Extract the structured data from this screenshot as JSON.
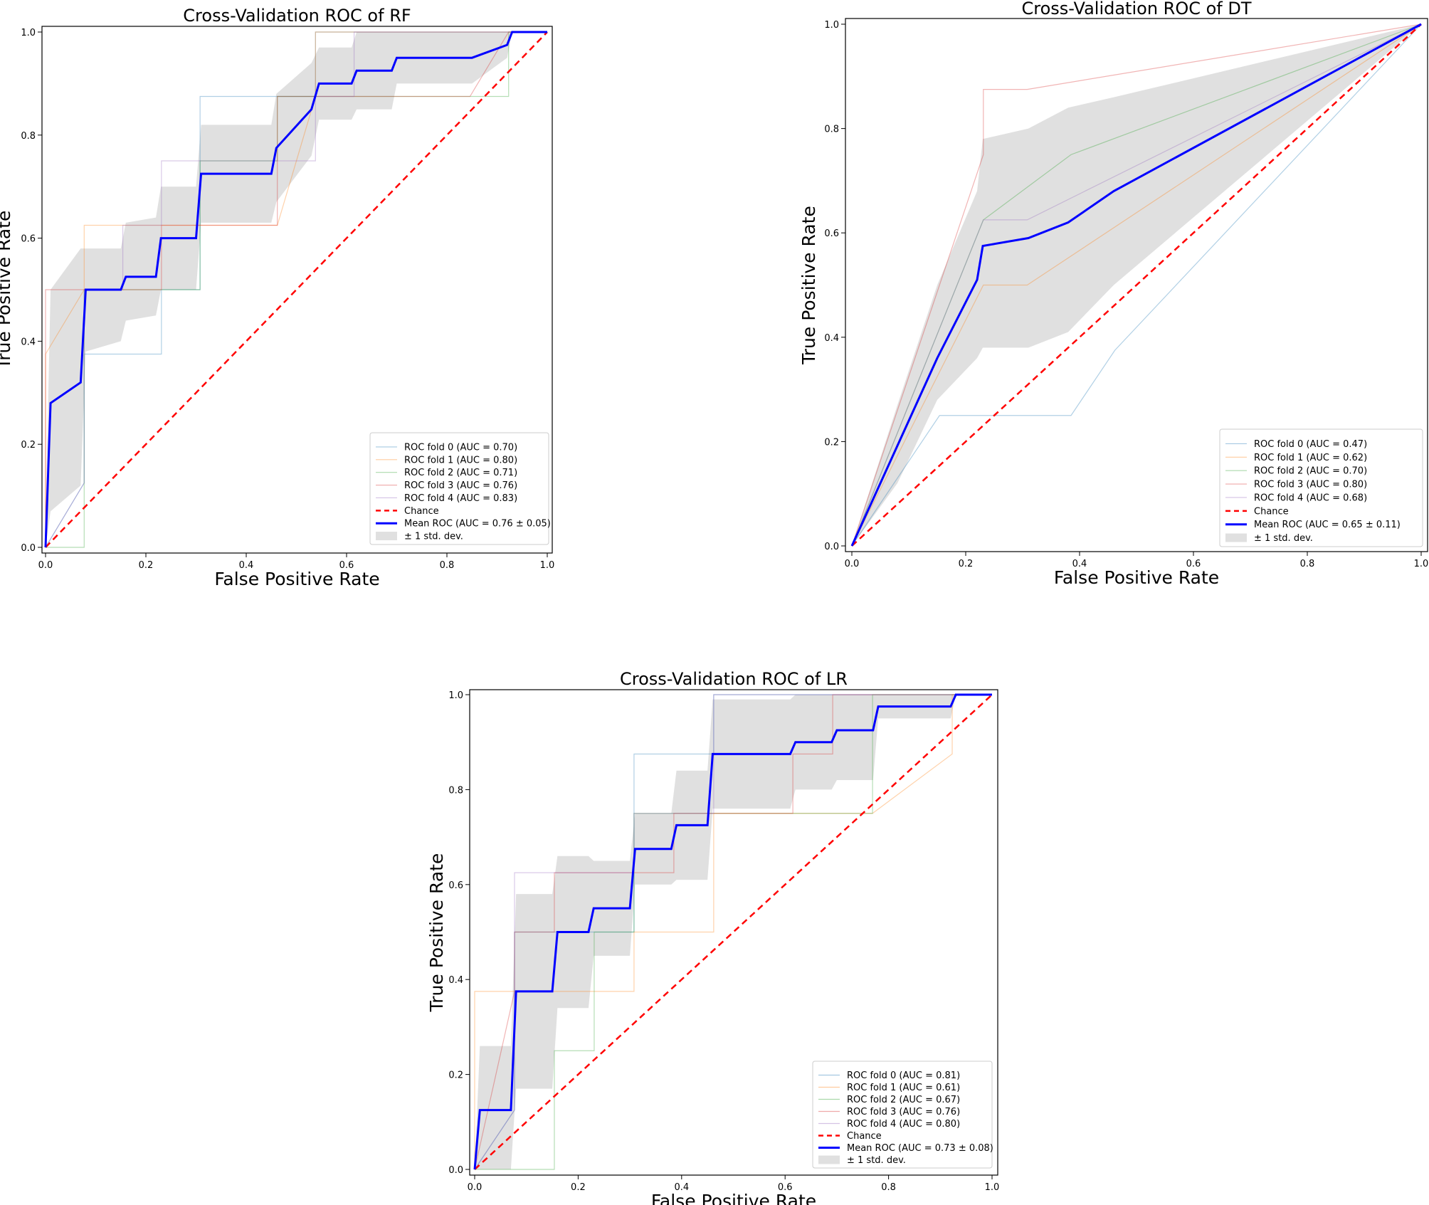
{
  "chart_data": [
    {
      "type": "line",
      "title": "Cross-Validation ROC of RF",
      "xlabel": "False Positive Rate",
      "ylabel": "True Positive Rate",
      "xlim": [
        0,
        1
      ],
      "ylim": [
        0,
        1
      ],
      "xticks": [
        "0.0",
        "0.2",
        "0.4",
        "0.6",
        "0.8",
        "1.0"
      ],
      "yticks": [
        "0.0",
        "0.2",
        "0.4",
        "0.6",
        "0.8",
        "1.0"
      ],
      "legend_position": "lower-right",
      "series": [
        {
          "name": "ROC fold 0 (AUC = 0.70)",
          "color": "#1f77b4",
          "x": [
            0,
            0.077,
            0.077,
            0.231,
            0.231,
            0.308,
            0.308,
            0.538,
            0.538,
            0.615,
            0.615,
            1
          ],
          "y": [
            0,
            0.125,
            0.375,
            0.375,
            0.5,
            0.5,
            0.875,
            0.875,
            1,
            1,
            1,
            1
          ]
        },
        {
          "name": "ROC fold 1 (AUC = 0.80)",
          "color": "#ff7f0e",
          "x": [
            0,
            0,
            0.077,
            0.077,
            0.462,
            0.538,
            0.538,
            1
          ],
          "y": [
            0,
            0.375,
            0.5,
            0.625,
            0.625,
            0.875,
            1,
            1
          ]
        },
        {
          "name": "ROC fold 2 (AUC = 0.71)",
          "color": "#2ca02c",
          "x": [
            0,
            0.077,
            0.077,
            0.308,
            0.308,
            0.462,
            0.462,
            0.923,
            0.923,
            1
          ],
          "y": [
            0,
            0,
            0.5,
            0.5,
            0.75,
            0.75,
            0.875,
            0.875,
            1,
            1
          ]
        },
        {
          "name": "ROC fold 3 (AUC = 0.76)",
          "color": "#d62728",
          "x": [
            0,
            0,
            0.231,
            0.231,
            0.462,
            0.462,
            0.846,
            0.923,
            1
          ],
          "y": [
            0,
            0.5,
            0.5,
            0.625,
            0.625,
            0.875,
            0.875,
            1,
            1
          ]
        },
        {
          "name": "ROC fold 4 (AUC = 0.83)",
          "color": "#9467bd",
          "x": [
            0,
            0.077,
            0.077,
            0.154,
            0.154,
            0.231,
            0.231,
            0.538,
            0.538,
            0.615,
            0.615,
            1
          ],
          "y": [
            0,
            0.125,
            0.5,
            0.5,
            0.625,
            0.625,
            0.75,
            0.75,
            0.875,
            0.875,
            1,
            1
          ]
        },
        {
          "name": "Chance",
          "color": "#ff0000",
          "dashed": true,
          "x": [
            0,
            1
          ],
          "y": [
            0,
            1
          ]
        },
        {
          "name": "Mean ROC (AUC = 0.76 ± 0.05)",
          "color": "#0000ff",
          "mean": true,
          "x": [
            0,
            0.01,
            0.07,
            0.08,
            0.15,
            0.16,
            0.22,
            0.23,
            0.3,
            0.31,
            0.45,
            0.46,
            0.53,
            0.545,
            0.55,
            0.61,
            0.62,
            0.69,
            0.7,
            0.85,
            0.92,
            0.93,
            1
          ],
          "y": [
            0,
            0.28,
            0.32,
            0.5,
            0.5,
            0.525,
            0.525,
            0.6,
            0.6,
            0.725,
            0.725,
            0.775,
            0.85,
            0.9,
            0.9,
            0.9,
            0.925,
            0.925,
            0.95,
            0.95,
            0.975,
            1,
            1
          ]
        }
      ],
      "band": {
        "name": "± 1 std. dev.",
        "x": [
          0,
          0.01,
          0.07,
          0.08,
          0.15,
          0.16,
          0.22,
          0.23,
          0.3,
          0.31,
          0.45,
          0.46,
          0.53,
          0.545,
          0.55,
          0.61,
          0.62,
          0.69,
          0.7,
          0.85,
          0.92,
          0.93,
          1
        ],
        "upper": [
          0.05,
          0.5,
          0.58,
          0.58,
          0.58,
          0.63,
          0.64,
          0.7,
          0.7,
          0.82,
          0.82,
          0.88,
          0.94,
          0.97,
          0.97,
          0.97,
          1,
          1,
          1,
          1,
          1,
          1,
          1
        ],
        "lower": [
          0,
          0.07,
          0.12,
          0.38,
          0.4,
          0.44,
          0.45,
          0.5,
          0.5,
          0.63,
          0.63,
          0.67,
          0.76,
          0.83,
          0.83,
          0.83,
          0.85,
          0.85,
          0.9,
          0.9,
          0.95,
          1,
          1
        ]
      }
    },
    {
      "type": "line",
      "title": "Cross-Validation ROC of DT",
      "xlabel": "False Positive Rate",
      "ylabel": "True Positive Rate",
      "xlim": [
        0,
        1
      ],
      "ylim": [
        0,
        1
      ],
      "xticks": [
        "0.0",
        "0.2",
        "0.4",
        "0.6",
        "0.8",
        "1.0"
      ],
      "yticks": [
        "0.0",
        "0.2",
        "0.4",
        "0.6",
        "0.8",
        "1.0"
      ],
      "legend_position": "lower-right",
      "series": [
        {
          "name": "ROC fold 0 (AUC = 0.47)",
          "color": "#1f77b4",
          "x": [
            0,
            0.154,
            0.385,
            0.462,
            1
          ],
          "y": [
            0,
            0.25,
            0.25,
            0.375,
            1
          ]
        },
        {
          "name": "ROC fold 1 (AUC = 0.62)",
          "color": "#ff7f0e",
          "x": [
            0,
            0.231,
            0.308,
            1
          ],
          "y": [
            0,
            0.5,
            0.5,
            1
          ]
        },
        {
          "name": "ROC fold 2 (AUC = 0.70)",
          "color": "#2ca02c",
          "x": [
            0,
            0.231,
            0.385,
            1
          ],
          "y": [
            0,
            0.625,
            0.75,
            1
          ]
        },
        {
          "name": "ROC fold 3 (AUC = 0.80)",
          "color": "#d62728",
          "x": [
            0,
            0.231,
            0.231,
            0.308,
            1
          ],
          "y": [
            0,
            0.75,
            0.875,
            0.875,
            1
          ]
        },
        {
          "name": "ROC fold 4 (AUC = 0.68)",
          "color": "#9467bd",
          "x": [
            0,
            0.231,
            0.308,
            1
          ],
          "y": [
            0,
            0.625,
            0.625,
            1
          ]
        },
        {
          "name": "Chance",
          "color": "#ff0000",
          "dashed": true,
          "x": [
            0,
            1
          ],
          "y": [
            0,
            1
          ]
        },
        {
          "name": "Mean ROC (AUC = 0.65 ± 0.11)",
          "color": "#0000ff",
          "mean": true,
          "x": [
            0,
            0.15,
            0.22,
            0.23,
            0.31,
            0.38,
            0.46,
            1
          ],
          "y": [
            0,
            0.36,
            0.51,
            0.575,
            0.59,
            0.62,
            0.68,
            1
          ]
        }
      ],
      "band": {
        "name": "± 1 std. dev.",
        "x": [
          0,
          0.08,
          0.15,
          0.22,
          0.23,
          0.31,
          0.38,
          0.46,
          1
        ],
        "upper": [
          0,
          0.27,
          0.5,
          0.68,
          0.78,
          0.8,
          0.84,
          0.86,
          1
        ],
        "lower": [
          0,
          0.12,
          0.28,
          0.36,
          0.38,
          0.38,
          0.41,
          0.5,
          1
        ]
      }
    },
    {
      "type": "line",
      "title": "Cross-Validation ROC of LR",
      "xlabel": "False Positive Rate",
      "ylabel": "True Positive Rate",
      "xlim": [
        0,
        1
      ],
      "ylim": [
        0,
        1
      ],
      "xticks": [
        "0.0",
        "0.2",
        "0.4",
        "0.6",
        "0.8",
        "1.0"
      ],
      "yticks": [
        "0.0",
        "0.2",
        "0.4",
        "0.6",
        "0.8",
        "1.0"
      ],
      "legend_position": "lower-right",
      "series": [
        {
          "name": "ROC fold 0 (AUC = 0.81)",
          "color": "#1f77b4",
          "x": [
            0,
            0.077,
            0.077,
            0.308,
            0.308,
            0.462,
            0.462,
            1
          ],
          "y": [
            0,
            0.125,
            0.5,
            0.5,
            0.875,
            0.875,
            1,
            1
          ]
        },
        {
          "name": "ROC fold 1 (AUC = 0.61)",
          "color": "#ff7f0e",
          "x": [
            0,
            0,
            0.308,
            0.308,
            0.462,
            0.462,
            0.769,
            0.923,
            0.923,
            1
          ],
          "y": [
            0,
            0.375,
            0.375,
            0.5,
            0.5,
            0.75,
            0.75,
            0.875,
            1,
            1
          ]
        },
        {
          "name": "ROC fold 2 (AUC = 0.67)",
          "color": "#2ca02c",
          "x": [
            0,
            0.154,
            0.154,
            0.231,
            0.231,
            0.308,
            0.308,
            0.769,
            0.769,
            1
          ],
          "y": [
            0,
            0,
            0.25,
            0.25,
            0.5,
            0.5,
            0.75,
            0.75,
            1,
            1
          ]
        },
        {
          "name": "ROC fold 3 (AUC = 0.76)",
          "color": "#d62728",
          "x": [
            0,
            0.077,
            0.077,
            0.154,
            0.154,
            0.385,
            0.385,
            0.615,
            0.615,
            0.692,
            0.692,
            1
          ],
          "y": [
            0,
            0.375,
            0.5,
            0.5,
            0.625,
            0.625,
            0.75,
            0.75,
            0.875,
            0.875,
            1,
            1
          ]
        },
        {
          "name": "ROC fold 4 (AUC = 0.80)",
          "color": "#9467bd",
          "x": [
            0,
            0.077,
            0.077,
            0.154,
            0.154,
            0.308,
            0.308,
            0.385,
            0.385,
            0.462,
            0.462,
            1
          ],
          "y": [
            0,
            0.125,
            0.625,
            0.625,
            0.625,
            0.625,
            0.75,
            0.75,
            0.75,
            0.75,
            1,
            1
          ]
        },
        {
          "name": "Chance",
          "color": "#ff0000",
          "dashed": true,
          "x": [
            0,
            1
          ],
          "y": [
            0,
            1
          ]
        },
        {
          "name": "Mean ROC (AUC = 0.73 ± 0.08)",
          "color": "#0000ff",
          "mean": true,
          "x": [
            0,
            0.01,
            0.07,
            0.08,
            0.15,
            0.16,
            0.22,
            0.23,
            0.3,
            0.31,
            0.38,
            0.39,
            0.45,
            0.46,
            0.61,
            0.62,
            0.69,
            0.7,
            0.77,
            0.78,
            0.92,
            0.93,
            1
          ],
          "y": [
            0,
            0.125,
            0.125,
            0.375,
            0.375,
            0.5,
            0.5,
            0.55,
            0.55,
            0.675,
            0.675,
            0.725,
            0.725,
            0.875,
            0.875,
            0.9,
            0.9,
            0.925,
            0.925,
            0.975,
            0.975,
            1,
            1
          ]
        }
      ],
      "band": {
        "name": "± 1 std. dev.",
        "x": [
          0,
          0.01,
          0.07,
          0.08,
          0.15,
          0.16,
          0.22,
          0.23,
          0.3,
          0.31,
          0.38,
          0.39,
          0.45,
          0.46,
          0.61,
          0.62,
          0.69,
          0.7,
          0.77,
          0.78,
          0.92,
          0.93,
          1
        ],
        "upper": [
          0,
          0.26,
          0.26,
          0.58,
          0.58,
          0.66,
          0.66,
          0.65,
          0.65,
          0.75,
          0.75,
          0.84,
          0.84,
          0.99,
          0.99,
          1,
          1,
          1,
          1,
          1,
          1,
          1,
          1
        ],
        "lower": [
          0,
          0,
          0,
          0.17,
          0.17,
          0.34,
          0.34,
          0.45,
          0.45,
          0.6,
          0.6,
          0.61,
          0.61,
          0.76,
          0.76,
          0.8,
          0.8,
          0.82,
          0.82,
          0.95,
          0.95,
          1,
          1
        ]
      }
    }
  ]
}
